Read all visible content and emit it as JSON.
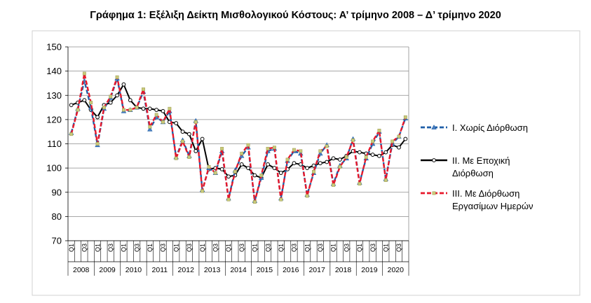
{
  "chart_data": {
    "type": "line",
    "title": "Γράφημα 1: Εξέλιξη Δείκτη Μισθολογικού Κόστους:  Α’ τρίμηνο 2008 – Δ’ τρίμηνο 2020",
    "ylim": [
      70,
      150
    ],
    "yticks": [
      70,
      80,
      90,
      100,
      110,
      120,
      130,
      140,
      150
    ],
    "quarter_labels": [
      "Q1",
      "Q3"
    ],
    "years": [
      "2008",
      "2009",
      "2010",
      "2011",
      "2012",
      "2013",
      "2014",
      "2015",
      "2016",
      "2017",
      "2018",
      "2019",
      "2020"
    ],
    "grid": true,
    "legend": "right",
    "series": [
      {
        "name": "I. Χωρίς Διόρθωση",
        "name_lines": [
          "I. Χωρίς Διόρθωση"
        ],
        "color": "#1F5FA8",
        "style": "dashed-triangle",
        "values": [
          114.5,
          124.5,
          136,
          125,
          109.5,
          124.5,
          129,
          137,
          123.5,
          124,
          125,
          131.5,
          116,
          121,
          119,
          123.5,
          104.5,
          111.5,
          105,
          119.5,
          91,
          100,
          98,
          107,
          87.5,
          99,
          105,
          108.5,
          86.5,
          96,
          107,
          108,
          87.5,
          103,
          107,
          106,
          89,
          98,
          106,
          109.5,
          93.5,
          101,
          104,
          112,
          94,
          104,
          110,
          115,
          95.5,
          110,
          113,
          120.5
        ]
      },
      {
        "name": "II. Με Εποχική Διόρθωση",
        "name_lines": [
          "II. Με Εποχική",
          "Διόρθωση"
        ],
        "color": "#000000",
        "style": "solid-circle",
        "values": [
          126,
          127,
          128,
          124,
          121,
          126,
          127,
          130,
          134.5,
          128,
          125,
          124.5,
          124.5,
          124,
          123.5,
          119,
          118.5,
          115,
          114,
          107,
          112,
          99.5,
          100,
          99.5,
          96.5,
          97,
          101.5,
          100,
          97,
          96,
          101.5,
          100,
          98,
          99.5,
          102,
          101.5,
          100,
          101,
          102,
          102.5,
          104,
          103.5,
          105,
          107,
          106.5,
          106,
          105.5,
          105,
          106.5,
          109.5,
          108.5,
          112
        ]
      },
      {
        "name": "III. Με Διόρθωση Εργασίμων Ημερών",
        "name_lines": [
          "III. Με Διόρθωση",
          "Εργασίμων Ημερών"
        ],
        "color": "#E8182B",
        "style": "dashed-square",
        "values": [
          114,
          124,
          139,
          127,
          110,
          125,
          129.5,
          137.5,
          124,
          124,
          125,
          132.5,
          117,
          122,
          119,
          124.5,
          104,
          111,
          104.5,
          119,
          90.5,
          100.5,
          98,
          108,
          87,
          98.5,
          106,
          109.5,
          86,
          97,
          108,
          108.5,
          87,
          103.5,
          107.5,
          107,
          88.5,
          98.5,
          107,
          109,
          93,
          100.5,
          104.5,
          111.5,
          93.5,
          104.5,
          111,
          115.5,
          95,
          111,
          113,
          121
        ]
      }
    ]
  }
}
